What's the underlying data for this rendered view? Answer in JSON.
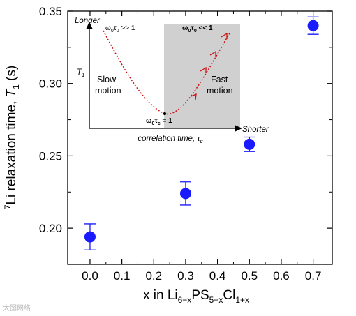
{
  "chart_data": {
    "type": "scatter",
    "x": [
      0.0,
      0.3,
      0.5,
      0.7
    ],
    "y": [
      0.194,
      0.224,
      0.258,
      0.34
    ],
    "yerr": [
      0.009,
      0.008,
      0.005,
      0.006
    ],
    "xlim": [
      -0.07,
      0.76
    ],
    "ylim": [
      0.175,
      0.35
    ],
    "xticks": [
      "0.0",
      "0.1",
      "0.2",
      "0.3",
      "0.4",
      "0.5",
      "0.6",
      "0.7"
    ],
    "yticks": [
      "0.20",
      "0.25",
      "0.30",
      "0.35"
    ],
    "xlabel": {
      "main": "x in Li",
      "sub1": "6−x",
      "mid1": "PS",
      "sub2": "5−x",
      "mid2": "Cl",
      "sub3": "1+x"
    },
    "ylabel": {
      "sup": "7",
      "main": "Li relaxation time, ",
      "var": "T",
      "sub": "1",
      "unit": " (s)"
    },
    "marker_color": "#1a1aff",
    "grid": false,
    "inset": {
      "y_top_label": "Longer",
      "x_right_label": "Shorter",
      "y_axis_label": {
        "var": "T",
        "sub": "1"
      },
      "x_axis_label": {
        "main": "correlation time, ",
        "var": "τ",
        "sub": "c"
      },
      "slow_label": [
        "Slow",
        "motion"
      ],
      "fast_label": [
        "Fast",
        "motion"
      ],
      "cond_left": {
        "a": "ω",
        "a_sub": "0",
        "b": "τ",
        "b_sub": "0",
        "rest": " >> 1"
      },
      "cond_right": {
        "a": "ω",
        "a_sub": "0",
        "b": "τ",
        "b_sub": "0",
        "rest": " << 1"
      },
      "cond_min": {
        "a": "ω",
        "a_sub": "0",
        "b": "τ",
        "b_sub": "c",
        "rest": " = 1"
      },
      "shade_color": "#d0d0d0",
      "curve_color": "#cc1111"
    }
  },
  "watermark": "大图网络"
}
